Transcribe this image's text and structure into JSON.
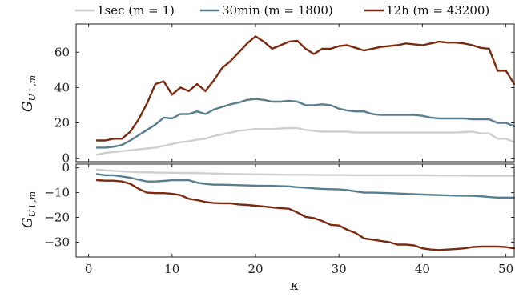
{
  "chart_data": [
    {
      "type": "line",
      "panel": "top",
      "ylabel": "G_{U↑,m}",
      "xlim": [
        -1.5,
        51
      ],
      "ylim": [
        -2,
        76
      ],
      "yticks": [
        0,
        20,
        40,
        60
      ],
      "legend_position": "top",
      "series": [
        {
          "name": "1sec (m = 1)",
          "color": "#cfcfcf",
          "points": [
            [
              1,
              2
            ],
            [
              2,
              3
            ],
            [
              3,
              3.5
            ],
            [
              4,
              4
            ],
            [
              5,
              4.5
            ],
            [
              6,
              5
            ],
            [
              7,
              5.5
            ],
            [
              8,
              6
            ],
            [
              9,
              7
            ],
            [
              10,
              8
            ],
            [
              11,
              9
            ],
            [
              12,
              9.5
            ],
            [
              13,
              10.5
            ],
            [
              14,
              11
            ],
            [
              15,
              12.5
            ],
            [
              16,
              13.5
            ],
            [
              17,
              14.5
            ],
            [
              18,
              15.5
            ],
            [
              19,
              16
            ],
            [
              20,
              16.5
            ],
            [
              21,
              16.5
            ],
            [
              22,
              16.5
            ],
            [
              23,
              16.8
            ],
            [
              24,
              17
            ],
            [
              25,
              17
            ],
            [
              26,
              16
            ],
            [
              27,
              15.5
            ],
            [
              28,
              15
            ],
            [
              29,
              15
            ],
            [
              30,
              15
            ],
            [
              31,
              15
            ],
            [
              32,
              14.5
            ],
            [
              33,
              14.5
            ],
            [
              34,
              14.5
            ],
            [
              35,
              14.5
            ],
            [
              36,
              14.5
            ],
            [
              37,
              14.5
            ],
            [
              38,
              14.5
            ],
            [
              39,
              14.5
            ],
            [
              40,
              14.5
            ],
            [
              41,
              14.5
            ],
            [
              42,
              14.5
            ],
            [
              43,
              14.5
            ],
            [
              44,
              14.5
            ],
            [
              45,
              14.8
            ],
            [
              46,
              15
            ],
            [
              47,
              14
            ],
            [
              48,
              14
            ],
            [
              49,
              11
            ],
            [
              50,
              11
            ],
            [
              51,
              9
            ]
          ]
        },
        {
          "name": "30min (m = 1800)",
          "color": "#5a7d8e",
          "points": [
            [
              1,
              6
            ],
            [
              2,
              6
            ],
            [
              3,
              6.5
            ],
            [
              4,
              7.5
            ],
            [
              5,
              10
            ],
            [
              6,
              13
            ],
            [
              7,
              16
            ],
            [
              8,
              19
            ],
            [
              9,
              23
            ],
            [
              10,
              22.5
            ],
            [
              11,
              25
            ],
            [
              12,
              25
            ],
            [
              13,
              26.5
            ],
            [
              14,
              25
            ],
            [
              15,
              27.5
            ],
            [
              16,
              29
            ],
            [
              17,
              30.5
            ],
            [
              18,
              31.5
            ],
            [
              19,
              33
            ],
            [
              20,
              33.5
            ],
            [
              21,
              33
            ],
            [
              22,
              32
            ],
            [
              23,
              32
            ],
            [
              24,
              32.5
            ],
            [
              25,
              32
            ],
            [
              26,
              30
            ],
            [
              27,
              30
            ],
            [
              28,
              30.5
            ],
            [
              29,
              30
            ],
            [
              30,
              28
            ],
            [
              31,
              27
            ],
            [
              32,
              26.5
            ],
            [
              33,
              26.5
            ],
            [
              34,
              25
            ],
            [
              35,
              24.5
            ],
            [
              36,
              24.5
            ],
            [
              37,
              24.5
            ],
            [
              38,
              24.5
            ],
            [
              39,
              24.5
            ],
            [
              40,
              24
            ],
            [
              41,
              23
            ],
            [
              42,
              22.5
            ],
            [
              43,
              22.5
            ],
            [
              44,
              22.5
            ],
            [
              45,
              22.5
            ],
            [
              46,
              22
            ],
            [
              47,
              22
            ],
            [
              48,
              22
            ],
            [
              49,
              20
            ],
            [
              50,
              20
            ],
            [
              51,
              18
            ]
          ]
        },
        {
          "name": "12h (m = 43200)",
          "color": "#7a2a10",
          "points": [
            [
              1,
              10
            ],
            [
              2,
              10
            ],
            [
              3,
              11
            ],
            [
              4,
              11
            ],
            [
              5,
              15
            ],
            [
              6,
              22
            ],
            [
              7,
              31
            ],
            [
              8,
              42
            ],
            [
              9,
              43.5
            ],
            [
              10,
              36
            ],
            [
              11,
              40
            ],
            [
              12,
              38
            ],
            [
              13,
              42
            ],
            [
              14,
              38
            ],
            [
              15,
              44
            ],
            [
              16,
              51
            ],
            [
              17,
              55
            ],
            [
              18,
              60
            ],
            [
              19,
              65
            ],
            [
              20,
              69
            ],
            [
              21,
              66
            ],
            [
              22,
              62
            ],
            [
              23,
              64
            ],
            [
              24,
              66
            ],
            [
              25,
              66.5
            ],
            [
              26,
              62
            ],
            [
              27,
              59
            ],
            [
              28,
              62
            ],
            [
              29,
              62
            ],
            [
              30,
              63.5
            ],
            [
              31,
              64
            ],
            [
              32,
              62.5
            ],
            [
              33,
              61
            ],
            [
              34,
              62
            ],
            [
              35,
              63
            ],
            [
              36,
              63.5
            ],
            [
              37,
              64
            ],
            [
              38,
              65
            ],
            [
              39,
              64.5
            ],
            [
              40,
              64
            ],
            [
              41,
              65
            ],
            [
              42,
              66
            ],
            [
              43,
              65.5
            ],
            [
              44,
              65.5
            ],
            [
              45,
              65
            ],
            [
              46,
              64
            ],
            [
              47,
              62.5
            ],
            [
              48,
              62
            ],
            [
              49,
              49.5
            ],
            [
              50,
              49.5
            ],
            [
              51,
              42
            ]
          ]
        }
      ]
    },
    {
      "type": "line",
      "panel": "bottom",
      "xlabel": "κ",
      "ylabel": "G_{U↓,m}",
      "xlim": [
        -1.5,
        51
      ],
      "ylim": [
        -36,
        1.5
      ],
      "xticks": [
        0,
        10,
        20,
        30,
        40,
        50
      ],
      "yticks": [
        0,
        -10,
        -20,
        -30
      ],
      "series": [
        {
          "name": "1sec (m = 1)",
          "color": "#cfcfcf",
          "points": [
            [
              1,
              -0.8
            ],
            [
              2,
              -1
            ],
            [
              3,
              -1.2
            ],
            [
              4,
              -1.4
            ],
            [
              5,
              -1.6
            ],
            [
              6,
              -1.8
            ],
            [
              8,
              -1.9
            ],
            [
              10,
              -2
            ],
            [
              12,
              -2.1
            ],
            [
              14,
              -2.2
            ],
            [
              16,
              -2.4
            ],
            [
              18,
              -2.5
            ],
            [
              20,
              -2.6
            ],
            [
              22,
              -2.7
            ],
            [
              24,
              -2.8
            ],
            [
              26,
              -2.8
            ],
            [
              28,
              -2.9
            ],
            [
              30,
              -2.9
            ],
            [
              32,
              -3
            ],
            [
              34,
              -3
            ],
            [
              36,
              -3
            ],
            [
              38,
              -3
            ],
            [
              40,
              -3
            ],
            [
              42,
              -3.1
            ],
            [
              44,
              -3.1
            ],
            [
              46,
              -3.2
            ],
            [
              48,
              -3.2
            ],
            [
              51,
              -3.2
            ]
          ]
        },
        {
          "name": "30min (m = 1800)",
          "color": "#5a7d8e",
          "points": [
            [
              1,
              -2.5
            ],
            [
              2,
              -3
            ],
            [
              3,
              -3
            ],
            [
              4,
              -3.5
            ],
            [
              5,
              -4
            ],
            [
              6,
              -4.8
            ],
            [
              7,
              -5.5
            ],
            [
              8,
              -5.5
            ],
            [
              9,
              -5.3
            ],
            [
              10,
              -5
            ],
            [
              11,
              -5
            ],
            [
              12,
              -5
            ],
            [
              13,
              -6
            ],
            [
              14,
              -6.5
            ],
            [
              15,
              -6.8
            ],
            [
              16,
              -6.8
            ],
            [
              18,
              -7
            ],
            [
              20,
              -7.2
            ],
            [
              22,
              -7.3
            ],
            [
              24,
              -7.5
            ],
            [
              25,
              -7.8
            ],
            [
              26,
              -8
            ],
            [
              27,
              -8.3
            ],
            [
              28,
              -8.5
            ],
            [
              30,
              -8.7
            ],
            [
              31,
              -9
            ],
            [
              32,
              -9.5
            ],
            [
              33,
              -10
            ],
            [
              34,
              -10
            ],
            [
              36,
              -10.2
            ],
            [
              38,
              -10.5
            ],
            [
              40,
              -10.8
            ],
            [
              42,
              -11
            ],
            [
              44,
              -11.2
            ],
            [
              46,
              -11.3
            ],
            [
              47,
              -11.5
            ],
            [
              48,
              -11.8
            ],
            [
              49,
              -12
            ],
            [
              51,
              -12
            ]
          ]
        },
        {
          "name": "12h (m = 43200)",
          "color": "#7a2a10",
          "points": [
            [
              1,
              -5
            ],
            [
              2,
              -5.2
            ],
            [
              3,
              -5.2
            ],
            [
              4,
              -5.5
            ],
            [
              5,
              -6.5
            ],
            [
              6,
              -8.5
            ],
            [
              7,
              -10
            ],
            [
              8,
              -10.2
            ],
            [
              9,
              -10.2
            ],
            [
              10,
              -10.5
            ],
            [
              11,
              -11
            ],
            [
              12,
              -12.5
            ],
            [
              13,
              -13
            ],
            [
              14,
              -13.8
            ],
            [
              15,
              -14.2
            ],
            [
              16,
              -14.3
            ],
            [
              17,
              -14.3
            ],
            [
              18,
              -14.8
            ],
            [
              19,
              -15
            ],
            [
              20,
              -15.3
            ],
            [
              21,
              -15.6
            ],
            [
              22,
              -16
            ],
            [
              23,
              -16.3
            ],
            [
              24,
              -16.5
            ],
            [
              25,
              -18
            ],
            [
              26,
              -19.8
            ],
            [
              27,
              -20.3
            ],
            [
              28,
              -21.5
            ],
            [
              29,
              -23
            ],
            [
              30,
              -23.3
            ],
            [
              31,
              -25
            ],
            [
              32,
              -26.3
            ],
            [
              33,
              -28.5
            ],
            [
              34,
              -29
            ],
            [
              35,
              -29.5
            ],
            [
              36,
              -30
            ],
            [
              37,
              -31
            ],
            [
              38,
              -31
            ],
            [
              39,
              -31.3
            ],
            [
              40,
              -32.5
            ],
            [
              41,
              -33
            ],
            [
              42,
              -33.2
            ],
            [
              43,
              -33
            ],
            [
              44,
              -32.8
            ],
            [
              45,
              -32.5
            ],
            [
              46,
              -32
            ],
            [
              47,
              -31.8
            ],
            [
              48,
              -31.8
            ],
            [
              49,
              -31.8
            ],
            [
              50,
              -32
            ],
            [
              51,
              -32.5
            ]
          ]
        }
      ]
    }
  ]
}
